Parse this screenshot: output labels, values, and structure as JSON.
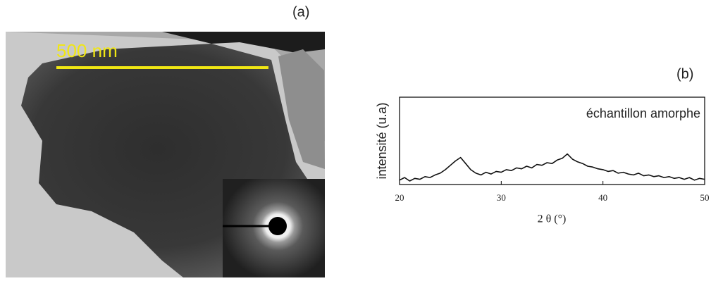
{
  "panels": {
    "a": {
      "label": "(a)",
      "scale_bar": "500 nm"
    },
    "b": {
      "label": "(b)"
    }
  },
  "chart_data": {
    "type": "line",
    "annotation": "échantillon amorphe",
    "ylabel": "intensité (u.a)",
    "xlabel": "2 θ (°)",
    "color": "#111111",
    "x": [
      20,
      20.5,
      21,
      21.5,
      22,
      22.5,
      23,
      23.5,
      24,
      24.5,
      25,
      25.5,
      26,
      26.5,
      27,
      27.5,
      28,
      28.5,
      29,
      29.5,
      30,
      30.5,
      31,
      31.5,
      32,
      32.5,
      33,
      33.5,
      34,
      34.5,
      35,
      35.5,
      36,
      36.5,
      37,
      37.5,
      38,
      38.5,
      39,
      39.5,
      40,
      40.5,
      41,
      41.5,
      42,
      42.5,
      43,
      43.5,
      44,
      44.5,
      45,
      45.5,
      46,
      46.5,
      47,
      47.5,
      48,
      48.5,
      49,
      49.5,
      50
    ],
    "values": [
      5,
      8,
      4,
      7,
      6,
      9,
      8,
      11,
      13,
      17,
      22,
      27,
      31,
      24,
      17,
      13,
      11,
      14,
      12,
      15,
      14,
      17,
      16,
      19,
      18,
      21,
      19,
      23,
      22,
      25,
      24,
      28,
      30,
      35,
      29,
      26,
      24,
      21,
      20,
      18,
      17,
      15,
      16,
      13,
      14,
      12,
      11,
      13,
      10,
      11,
      9,
      10,
      8,
      9,
      7,
      8,
      6,
      8,
      5,
      7,
      6
    ],
    "xlim": [
      20,
      50
    ],
    "ylim": [
      0,
      100
    ],
    "xticks": [
      20,
      30,
      40,
      50
    ]
  }
}
